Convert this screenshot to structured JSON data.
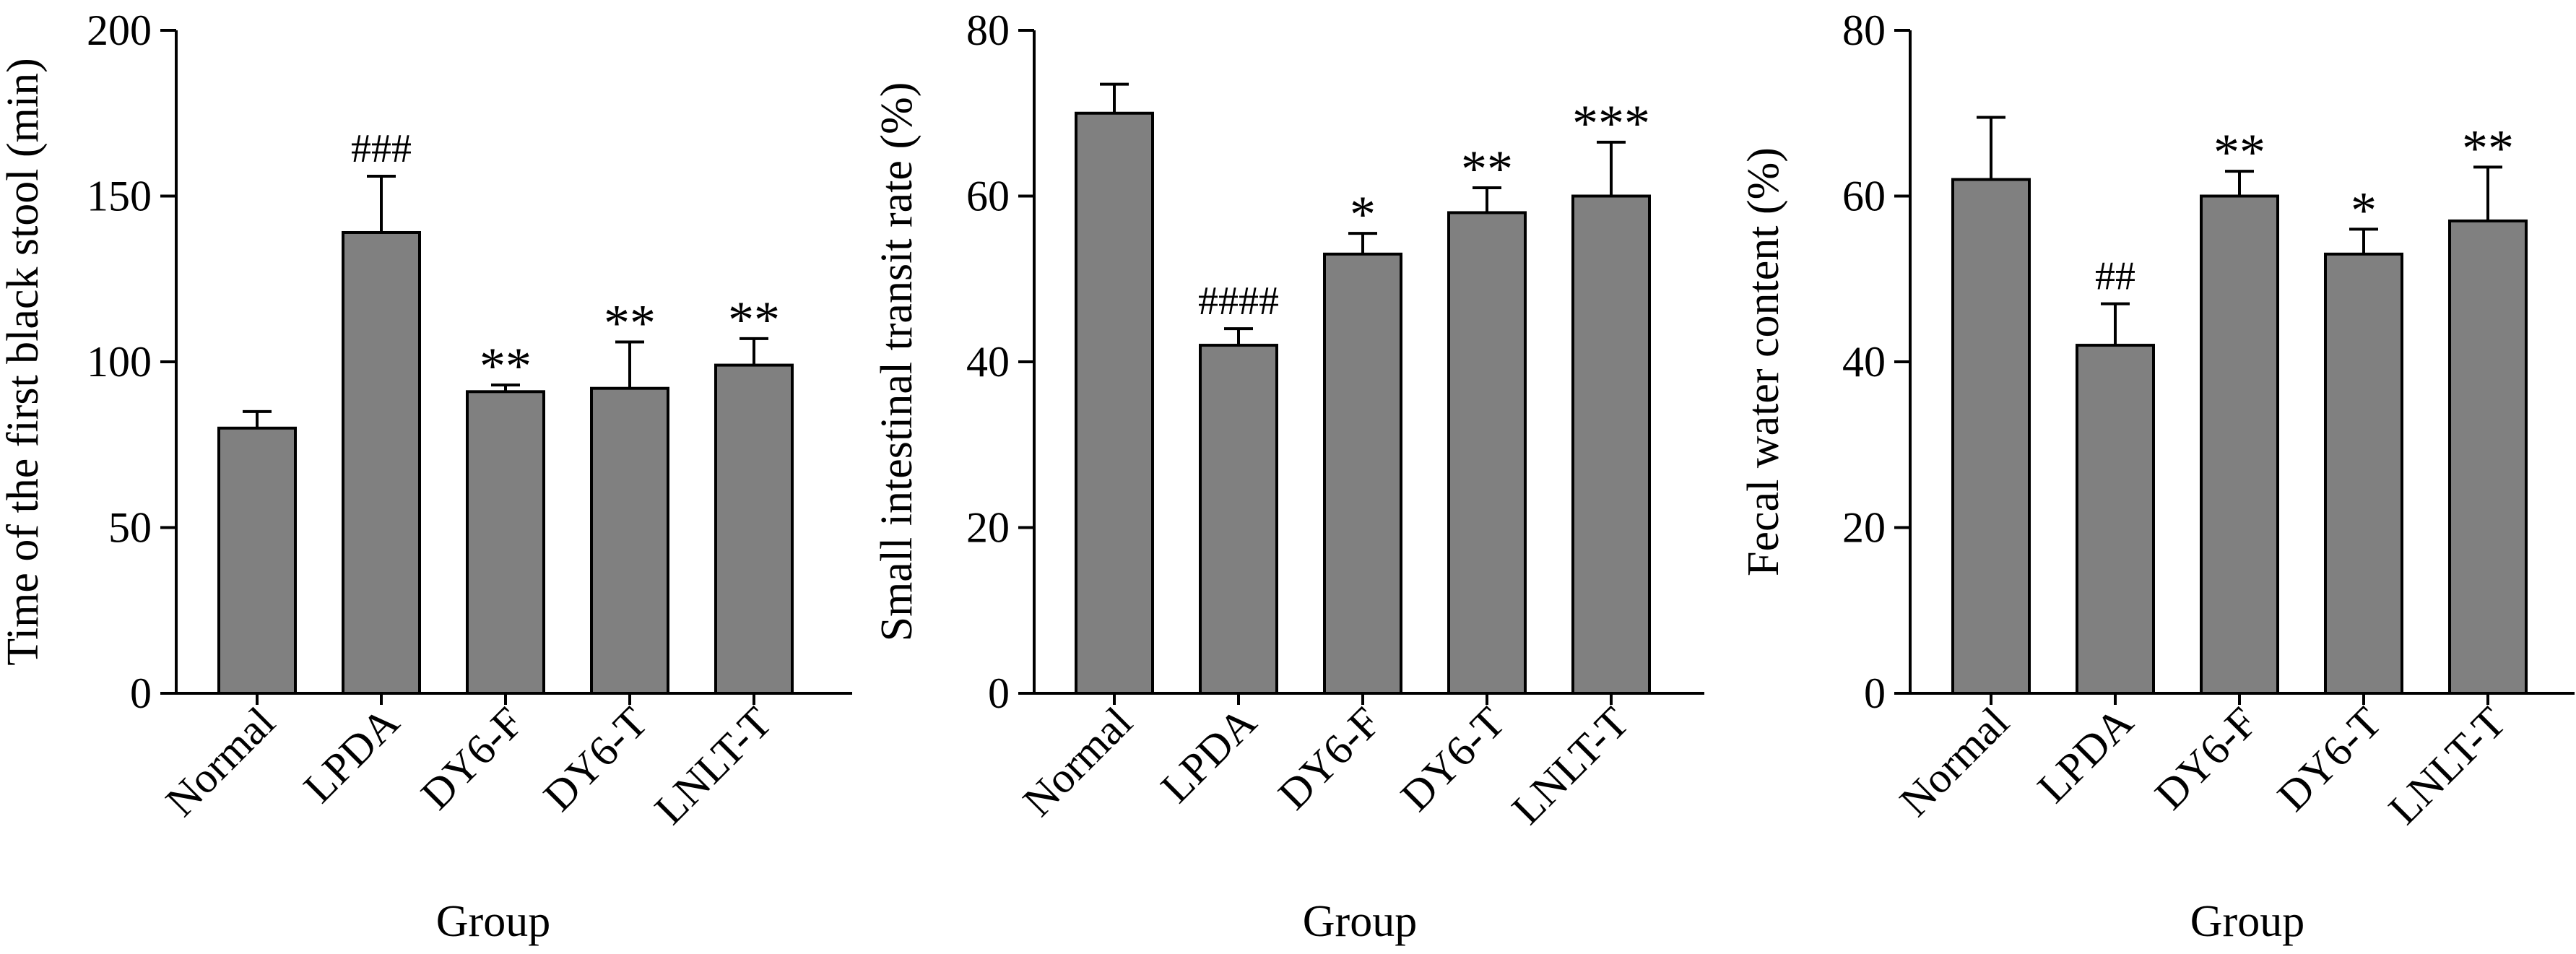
{
  "colors": {
    "bar_fill": "#808080",
    "stroke": "#000000",
    "background": "#ffffff"
  },
  "chart_data": [
    {
      "type": "bar",
      "title": "",
      "categories": [
        "Normal",
        "LPDA",
        "DY6-F",
        "DY6-T",
        "LNLT-T"
      ],
      "values": [
        80,
        139,
        91,
        92,
        99
      ],
      "errors": [
        5,
        17,
        2,
        14,
        8
      ],
      "annotations": [
        "",
        "###",
        "**",
        "**",
        "**"
      ],
      "xlabel": "Group",
      "ylabel": "Time of the first black stool (min)",
      "ylim": [
        0,
        200
      ],
      "yticks": [
        0,
        50,
        100,
        150,
        200
      ],
      "grid": false,
      "legend": "none"
    },
    {
      "type": "bar",
      "title": "",
      "categories": [
        "Normal",
        "LPDA",
        "DY6-F",
        "DY6-T",
        "LNLT-T"
      ],
      "values": [
        70,
        42,
        53,
        58,
        60
      ],
      "errors": [
        3.5,
        2,
        2.5,
        3,
        6.5
      ],
      "annotations": [
        "",
        "####",
        "*",
        "**",
        "***"
      ],
      "xlabel": "Group",
      "ylabel": "Small intestinal transit rate (%)",
      "ylim": [
        0,
        80
      ],
      "yticks": [
        0,
        20,
        40,
        60,
        80
      ],
      "grid": false,
      "legend": "none"
    },
    {
      "type": "bar",
      "title": "",
      "categories": [
        "Normal",
        "LPDA",
        "DY6-F",
        "DY6-T",
        "LNLT-T"
      ],
      "values": [
        62,
        42,
        60,
        53,
        57
      ],
      "errors": [
        7.5,
        5,
        3,
        3,
        6.5
      ],
      "annotations": [
        "",
        "##",
        "**",
        "*",
        "**"
      ],
      "xlabel": "Group",
      "ylabel": "Fecal water content (%)",
      "ylim": [
        0,
        80
      ],
      "yticks": [
        0,
        20,
        40,
        60,
        80
      ],
      "grid": false,
      "legend": "none"
    }
  ]
}
